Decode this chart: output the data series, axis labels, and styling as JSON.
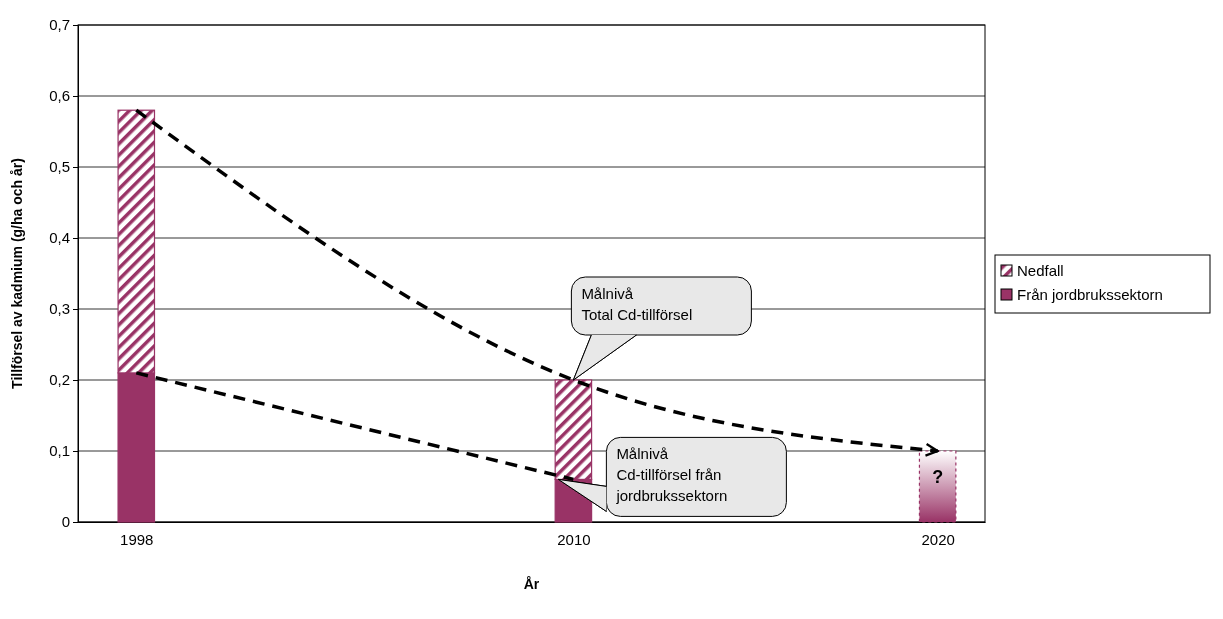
{
  "chart_data": {
    "type": "bar",
    "stacked": true,
    "xlabel": "År",
    "ylabel": "Tillförsel av kadmium (g/ha och år)",
    "x": [
      1998,
      2010,
      2020
    ],
    "xlim": [
      1996.4,
      2021.3
    ],
    "xticks": [
      1998,
      2010,
      2020
    ],
    "ylim": [
      0,
      0.7
    ],
    "yticks": [
      0,
      {
        "value": 0.1,
        "label": "0,1"
      },
      {
        "value": 0.2,
        "label": "0,2"
      },
      {
        "value": 0.3,
        "label": "0,3"
      },
      {
        "value": 0.4,
        "label": "0,4"
      },
      {
        "value": 0.5,
        "label": "0,5"
      },
      {
        "value": 0.6,
        "label": "0,6"
      },
      {
        "value": 0.7,
        "label": "0,7"
      }
    ],
    "grid": "y",
    "legend": "right",
    "series": [
      {
        "name": "Från jordbrukssektorn",
        "color": "#993366",
        "values": [
          0.21,
          0.06,
          null
        ]
      },
      {
        "name": "Nedfall",
        "color": "#993366",
        "values": [
          0.37,
          0.14,
          null
        ]
      },
      {
        "color": "#993366",
        "line_style": "dotted",
        "values": [
          null,
          null,
          0.1
        ]
      },
      {
        "type": "line",
        "color": "#000000",
        "line_style": "dashed",
        "x": [
          1998,
          2010,
          2020
        ],
        "values": [
          0.58,
          0.2,
          0.1
        ]
      },
      {
        "type": "line",
        "color": "#000000",
        "line_style": "dashed",
        "x": [
          1998,
          2010
        ],
        "values": [
          0.21,
          0.06
        ]
      }
    ],
    "annotations": [
      "Målnivå\nTotal Cd-tillförsel",
      "Målnivå\nCd-tillförsel från\njordbrukssektorn",
      "?"
    ]
  }
}
